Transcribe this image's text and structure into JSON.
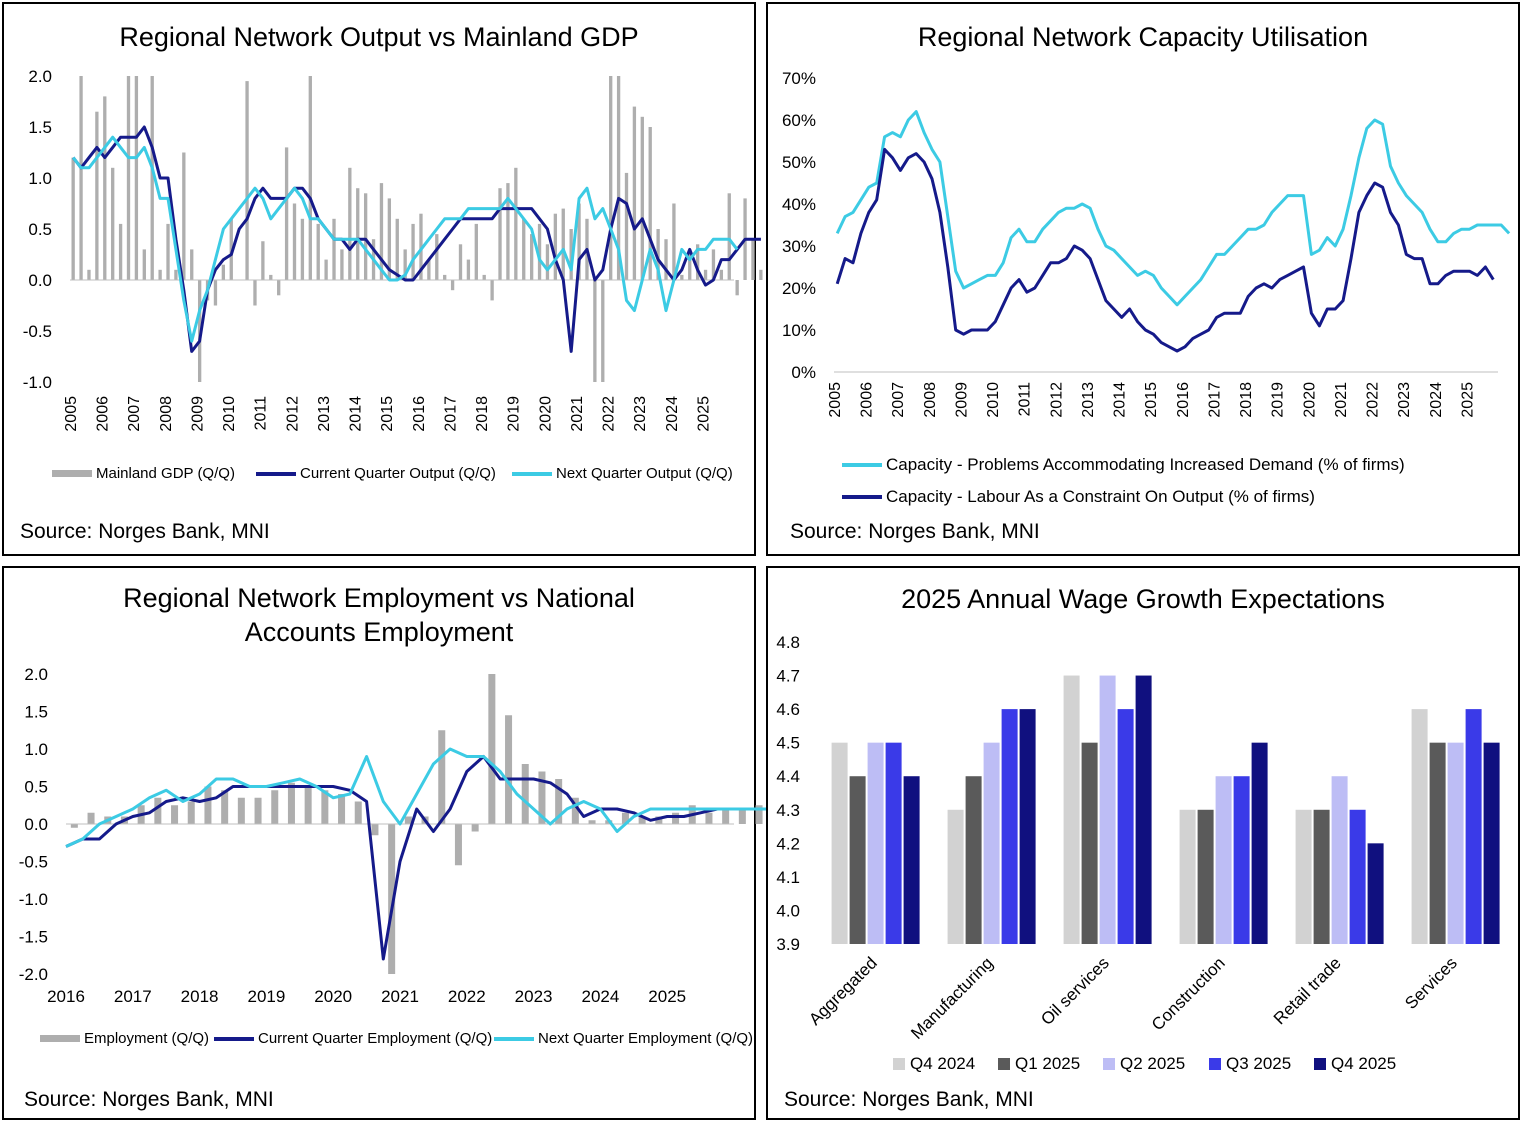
{
  "colors": {
    "grey_bar": "#aeaeae",
    "navy": "#151a8a",
    "cyan": "#3ccbe4",
    "q4_2024": "#d2d2d2",
    "q1_2025": "#5a5a5a",
    "q2_2025": "#bdbdf5",
    "q3_2025": "#3a3ae8",
    "q4_2025": "#10107f"
  },
  "chart_data": [
    {
      "id": "output",
      "type": "bar+line",
      "title": "Regional Network Output vs Mainland GDP",
      "source": "Source: Norges Bank, MNI",
      "x_range": [
        2005.0,
        2026.0
      ],
      "ylim": [
        -1.0,
        2.0
      ],
      "yticks": [
        "2.0",
        "1.5",
        "1.0",
        "0.5",
        "0.0",
        "-0.5",
        "-1.0"
      ],
      "xticks": [
        "2005",
        "2006",
        "2007",
        "2008",
        "2009",
        "2010",
        "2011",
        "2012",
        "2013",
        "2014",
        "2015",
        "2016",
        "2017",
        "2018",
        "2019",
        "2020",
        "2021",
        "2022",
        "2023",
        "2024",
        "2025"
      ],
      "legend": [
        "Mainland GDP (Q/Q)",
        "Current Quarter Output (Q/Q)",
        "Next Quarter Output (Q/Q)"
      ],
      "bars": {
        "start": 2005.1,
        "step": 0.25,
        "values": [
          1.2,
          2.0,
          0.1,
          1.65,
          1.8,
          1.1,
          0.55,
          2.0,
          2.0,
          0.3,
          2.0,
          0.1,
          0.55,
          0.1,
          1.25,
          0.3,
          -1.0,
          -0.2,
          -0.25,
          0.15,
          0.6,
          0.0,
          1.95,
          -0.25,
          0.38,
          0.05,
          -0.15,
          1.3,
          0.75,
          0.6,
          2.0,
          0.55,
          0.2,
          0.6,
          0.3,
          1.1,
          0.9,
          0.85,
          0.4,
          0.95,
          0.8,
          0.6,
          0.3,
          0.55,
          0.65,
          0.2,
          0.45,
          0.05,
          -0.1,
          0.35,
          0.2,
          0.55,
          0.05,
          -0.2,
          0.9,
          0.95,
          1.1,
          0.6,
          0.45,
          0.55,
          0.35,
          0.65,
          0.7,
          0.5,
          0.75,
          0.6,
          -1.0,
          -1.0,
          2.0,
          2.0,
          1.05,
          1.7,
          1.6,
          1.5,
          0.5,
          0.4,
          0.75,
          0.05,
          0.3,
          0.35,
          0.1,
          0.3,
          0.1,
          0.85,
          -0.15,
          0.8,
          0.4,
          0.1
        ]
      },
      "series": [
        {
          "name": "Current Quarter Output (Q/Q)",
          "start": 2005.1,
          "step": 0.25,
          "values": [
            1.2,
            1.1,
            1.2,
            1.3,
            1.2,
            1.3,
            1.4,
            1.4,
            1.4,
            1.5,
            1.3,
            1.0,
            1.0,
            0.4,
            -0.1,
            -0.7,
            -0.6,
            -0.1,
            0.1,
            0.2,
            0.25,
            0.5,
            0.6,
            0.8,
            0.9,
            0.8,
            0.8,
            0.8,
            0.9,
            0.9,
            0.8,
            0.6,
            0.5,
            0.4,
            0.4,
            0.3,
            0.4,
            0.4,
            0.3,
            0.2,
            0.1,
            0.05,
            0.0,
            0.0,
            0.1,
            0.2,
            0.3,
            0.4,
            0.5,
            0.6,
            0.6,
            0.6,
            0.6,
            0.6,
            0.7,
            0.7,
            0.7,
            0.7,
            0.7,
            0.6,
            0.5,
            0.2,
            0.0,
            -0.7,
            0.2,
            0.3,
            0.0,
            0.1,
            0.5,
            0.8,
            0.75,
            0.5,
            0.6,
            0.4,
            0.2,
            0.1,
            0.0,
            0.1,
            0.3,
            0.1,
            -0.05,
            0.0,
            0.2,
            0.2,
            0.3,
            0.4,
            0.4,
            0.4
          ]
        },
        {
          "name": "Next Quarter Output (Q/Q)",
          "start": 2005.1,
          "step": 0.25,
          "values": [
            1.2,
            1.1,
            1.1,
            1.2,
            1.3,
            1.4,
            1.3,
            1.2,
            1.2,
            1.3,
            1.1,
            0.8,
            0.8,
            0.3,
            -0.2,
            -0.6,
            -0.3,
            -0.1,
            0.2,
            0.5,
            0.6,
            0.7,
            0.8,
            0.9,
            0.8,
            0.6,
            0.7,
            0.8,
            0.9,
            0.8,
            0.6,
            0.6,
            0.5,
            0.4,
            0.4,
            0.4,
            0.4,
            0.3,
            0.2,
            0.1,
            0.0,
            0.0,
            0.05,
            0.2,
            0.3,
            0.4,
            0.5,
            0.6,
            0.6,
            0.6,
            0.7,
            0.7,
            0.7,
            0.7,
            0.7,
            0.8,
            0.7,
            0.6,
            0.5,
            0.2,
            0.1,
            0.2,
            0.3,
            0.1,
            0.8,
            0.9,
            0.6,
            0.7,
            0.5,
            0.3,
            -0.2,
            -0.3,
            0.0,
            0.3,
            0.1,
            -0.3,
            0.0,
            0.3,
            0.2,
            0.3,
            0.3,
            0.4,
            0.4,
            0.4,
            0.3
          ]
        }
      ]
    },
    {
      "id": "capacity",
      "type": "line",
      "title": "Regional Network Capacity Utilisation",
      "source": "Source: Norges Bank, MNI",
      "x_range": [
        2005.0,
        2026.0
      ],
      "ylim": [
        0,
        70
      ],
      "yticks": [
        "70%",
        "60%",
        "50%",
        "40%",
        "30%",
        "20%",
        "10%",
        "0%"
      ],
      "xticks": [
        "2005",
        "2006",
        "2007",
        "2008",
        "2009",
        "2010",
        "2011",
        "2012",
        "2013",
        "2014",
        "2015",
        "2016",
        "2017",
        "2018",
        "2019",
        "2020",
        "2021",
        "2022",
        "2023",
        "2024",
        "2025"
      ],
      "legend": [
        "Capacity - Problems Accommodating Increased Demand (% of firms)",
        "Capacity - Labour As a Constraint On Output (% of firms)"
      ],
      "series": [
        {
          "name": "Capacity - Problems Accommodating Increased Demand (% of firms)",
          "start": 2005.1,
          "step": 0.25,
          "values": [
            33,
            37,
            38,
            41,
            44,
            45,
            56,
            57,
            56,
            60,
            62,
            57,
            53,
            50,
            37,
            24,
            20,
            21,
            22,
            23,
            23,
            26,
            32,
            34,
            31,
            31,
            34,
            36,
            38,
            39,
            39,
            40,
            39,
            34,
            30,
            29,
            27,
            25,
            23,
            24,
            23,
            20,
            18,
            16,
            18,
            20,
            22,
            25,
            28,
            28,
            30,
            32,
            34,
            34,
            35,
            38,
            40,
            42,
            42,
            42,
            28,
            29,
            32,
            30,
            34,
            42,
            51,
            58,
            60,
            59,
            49,
            45,
            42,
            40,
            38,
            34,
            31,
            31,
            33,
            34,
            34,
            35,
            35,
            35,
            35,
            33
          ]
        },
        {
          "name": "Capacity - Labour As a Constraint On Output (% of firms)",
          "start": 2005.1,
          "step": 0.25,
          "values": [
            21,
            27,
            26,
            33,
            38,
            41,
            53,
            51,
            48,
            51,
            52,
            50,
            46,
            38,
            25,
            10,
            9,
            10,
            10,
            10,
            12,
            16,
            20,
            22,
            19,
            20,
            23,
            26,
            26,
            27,
            30,
            29,
            27,
            22,
            17,
            15,
            13,
            15,
            12,
            10,
            9,
            7,
            6,
            5,
            6,
            8,
            9,
            10,
            13,
            14,
            14,
            14,
            18,
            20,
            21,
            20,
            22,
            23,
            24,
            25,
            14,
            11,
            15,
            15,
            17,
            27,
            38,
            42,
            45,
            44,
            38,
            35,
            28,
            27,
            27,
            21,
            21,
            23,
            24,
            24,
            24,
            23,
            25,
            22
          ]
        }
      ]
    },
    {
      "id": "employment",
      "type": "bar+line",
      "title": "Regional Network Employment vs National Accounts Employment",
      "title_lines": [
        "Regional Network Employment vs National",
        "Accounts Employment"
      ],
      "source": "Source: Norges Bank, MNI",
      "x_range": [
        2016.0,
        2026.0
      ],
      "ylim": [
        -2.0,
        2.0
      ],
      "yticks": [
        "2.0",
        "1.5",
        "1.0",
        "0.5",
        "0.0",
        "-0.5",
        "-1.0",
        "-1.5",
        "-2.0"
      ],
      "xticks": [
        "2016",
        "2017",
        "2018",
        "2019",
        "2020",
        "2021",
        "2022",
        "2023",
        "2024",
        "2025"
      ],
      "legend": [
        "Employment (Q/Q)",
        "Current Quarter Employment (Q/Q)",
        "Next Quarter Employment (Q/Q)"
      ],
      "bars": {
        "start": 2016.125,
        "step": 0.25,
        "values": [
          -0.05,
          0.15,
          0.1,
          0.1,
          0.25,
          0.35,
          0.25,
          0.3,
          0.5,
          0.45,
          0.35,
          0.35,
          0.45,
          0.55,
          0.5,
          0.45,
          0.4,
          0.3,
          -0.15,
          -2.0,
          0.1,
          0.1,
          1.25,
          -0.55,
          -0.1,
          2.0,
          1.45,
          0.8,
          0.7,
          0.6,
          0.35,
          0.05,
          0.05,
          0.15,
          0.1,
          0.1,
          0.15,
          0.25,
          0.15,
          0.2,
          0.2,
          0.25,
          0.2,
          0.15,
          0.1,
          0.05
        ]
      },
      "series": [
        {
          "name": "Current Quarter Employment (Q/Q)",
          "start": 2016.0,
          "step": 0.25,
          "values": [
            -0.3,
            -0.2,
            -0.2,
            0.0,
            0.1,
            0.15,
            0.3,
            0.35,
            0.3,
            0.35,
            0.5,
            0.5,
            0.5,
            0.5,
            0.5,
            0.5,
            0.5,
            0.45,
            0.3,
            -1.8,
            -0.5,
            0.2,
            -0.1,
            0.2,
            0.7,
            0.9,
            0.6,
            0.6,
            0.6,
            0.55,
            0.4,
            0.1,
            0.2,
            0.2,
            0.15,
            0.05,
            0.1,
            0.1,
            0.15,
            0.2,
            0.2,
            0.2,
            0.2,
            0.2,
            0.2,
            0.2,
            0.1
          ]
        },
        {
          "name": "Next Quarter Employment (Q/Q)",
          "start": 2016.0,
          "step": 0.25,
          "values": [
            -0.3,
            -0.2,
            0.0,
            0.1,
            0.2,
            0.35,
            0.45,
            0.3,
            0.4,
            0.6,
            0.6,
            0.5,
            0.5,
            0.55,
            0.6,
            0.5,
            0.35,
            0.4,
            0.9,
            0.3,
            0.0,
            0.4,
            0.8,
            1.0,
            0.9,
            0.9,
            0.7,
            0.4,
            0.2,
            0.0,
            0.2,
            0.3,
            0.2,
            -0.1,
            0.1,
            0.2,
            0.2,
            0.2,
            0.2,
            0.2,
            0.2,
            0.2,
            0.2,
            0.2,
            0.1
          ]
        }
      ]
    },
    {
      "id": "wage",
      "type": "bar",
      "title": "2025 Annual Wage Growth Expectations",
      "source": "Source: Norges Bank, MNI",
      "ylim": [
        3.9,
        4.8
      ],
      "yticks": [
        "4.8",
        "4.7",
        "4.6",
        "4.5",
        "4.4",
        "4.3",
        "4.2",
        "4.1",
        "4.0",
        "3.9"
      ],
      "categories": [
        "Aggregated",
        "Manufacturing",
        "Oil services",
        "Construction",
        "Retail trade",
        "Services"
      ],
      "series": [
        {
          "name": "Q4 2024",
          "values": [
            4.5,
            4.3,
            4.7,
            4.3,
            4.3,
            4.6
          ]
        },
        {
          "name": "Q1 2025",
          "values": [
            4.4,
            4.4,
            4.5,
            4.3,
            4.3,
            4.5
          ]
        },
        {
          "name": "Q2 2025",
          "values": [
            4.5,
            4.5,
            4.7,
            4.4,
            4.4,
            4.5
          ]
        },
        {
          "name": "Q3 2025",
          "values": [
            4.5,
            4.6,
            4.6,
            4.4,
            4.3,
            4.6
          ]
        },
        {
          "name": "Q4 2025",
          "values": [
            4.4,
            4.6,
            4.7,
            4.5,
            4.2,
            4.5
          ]
        }
      ]
    }
  ]
}
